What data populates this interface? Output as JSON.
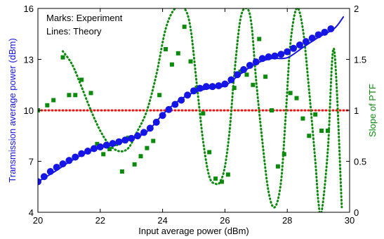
{
  "chart_data": {
    "type": "line",
    "xlabel": "Input average power (dBm)",
    "ylabel_left": "Transmission average power (dBm)",
    "ylabel_right": "Slope of PTF",
    "xlim": [
      20,
      30
    ],
    "ylim_left": [
      4,
      16
    ],
    "ylim_right": [
      0,
      2
    ],
    "x_ticks": [
      "20",
      "22",
      "24",
      "26",
      "28",
      "30"
    ],
    "y_ticks_left": [
      "4",
      "7",
      "10",
      "13",
      "16"
    ],
    "y_ticks_right": [
      "0",
      "0.5",
      "1",
      "1.5",
      "2"
    ],
    "annotations": [
      "Marks: Experiment",
      "Lines: Theory"
    ],
    "colors": {
      "blue": "#1515e6",
      "green": "#0c8a0c",
      "red": "#ee1111"
    },
    "grid": false,
    "series": [
      {
        "axis": "left",
        "style": "markers",
        "color": "#1515e6",
        "x": [
          20.0,
          20.2,
          20.4,
          20.6,
          20.8,
          21.0,
          21.2,
          21.4,
          21.6,
          21.8,
          22.0,
          22.2,
          22.4,
          22.6,
          22.8,
          23.0,
          23.2,
          23.4,
          23.6,
          23.8,
          24.0,
          24.2,
          24.4,
          24.6,
          24.8,
          25.0,
          25.2,
          25.4,
          25.6,
          25.8,
          26.0,
          26.2,
          26.4,
          26.6,
          26.8,
          27.0,
          27.2,
          27.4,
          27.6,
          27.8,
          28.0,
          28.2,
          28.4,
          28.6,
          28.8,
          29.0,
          29.2,
          29.4
        ],
        "y": [
          5.8,
          6.1,
          6.4,
          6.65,
          6.85,
          7.05,
          7.25,
          7.45,
          7.6,
          7.75,
          7.85,
          7.95,
          8.05,
          8.15,
          8.25,
          8.35,
          8.5,
          8.7,
          8.95,
          9.3,
          9.7,
          10.05,
          10.35,
          10.6,
          10.9,
          11.15,
          11.3,
          11.4,
          11.4,
          11.45,
          11.55,
          11.8,
          12.1,
          12.4,
          12.65,
          12.85,
          13.05,
          13.15,
          13.2,
          13.3,
          13.45,
          13.65,
          13.85,
          14.05,
          14.25,
          14.45,
          14.6,
          14.8
        ]
      },
      {
        "axis": "left",
        "style": "solid",
        "color": "#1515e6",
        "x": [
          20.0,
          20.5,
          21.0,
          21.5,
          22.0,
          22.5,
          23.0,
          23.5,
          24.0,
          24.5,
          25.0,
          25.5,
          26.0,
          26.5,
          27.0,
          27.5,
          28.0,
          28.5,
          29.0,
          29.5,
          29.8
        ],
        "y": [
          5.8,
          6.35,
          6.95,
          7.45,
          7.8,
          8.05,
          8.3,
          8.75,
          9.75,
          10.55,
          11.05,
          11.3,
          11.45,
          12.15,
          12.75,
          13.05,
          13.1,
          13.7,
          14.3,
          14.8,
          15.5
        ]
      },
      {
        "axis": "right",
        "style": "squares",
        "color": "#0c8a0c",
        "x": [
          20.0,
          20.3,
          20.5,
          20.8,
          21.0,
          21.2,
          21.4,
          21.7,
          21.9,
          22.1,
          22.3,
          22.5,
          22.7,
          22.9,
          23.1,
          23.3,
          23.5,
          23.7,
          23.9,
          24.1,
          24.3,
          24.5,
          24.7,
          24.9,
          25.1,
          25.3,
          25.5,
          25.7,
          25.9,
          26.1,
          26.3,
          26.5,
          26.7,
          26.9,
          27.1,
          27.3,
          27.5,
          27.7,
          27.9,
          28.1,
          28.3,
          28.5,
          28.7,
          28.9,
          29.1,
          29.3
        ],
        "y": [
          1.0,
          1.05,
          1.1,
          1.52,
          1.15,
          1.15,
          1.3,
          1.17,
          0.67,
          0.57,
          0.62,
          0.67,
          0.4,
          0.73,
          0.47,
          0.55,
          0.63,
          0.7,
          1.15,
          1.6,
          1.45,
          1.56,
          1.82,
          1.48,
          1.22,
          0.97,
          0.59,
          0.33,
          0.3,
          0.37,
          1.22,
          1.38,
          1.35,
          1.25,
          1.7,
          1.33,
          1.0,
          0.45,
          0.57,
          1.17,
          1.12,
          0.92,
          0.75,
          0.96,
          0.8,
          0.8
        ]
      },
      {
        "axis": "right",
        "style": "dotted",
        "color": "#0c8a0c",
        "x": [
          20.8,
          21.1,
          21.4,
          21.7,
          22.0,
          22.3,
          22.6,
          22.9,
          23.2,
          23.5,
          23.8,
          24.1,
          24.4,
          24.7,
          24.9,
          25.1,
          25.3,
          25.5,
          25.7,
          25.85,
          26.0,
          26.15,
          26.3,
          26.5,
          26.7,
          26.85,
          27.0,
          27.2,
          27.4,
          27.6,
          27.8,
          27.95,
          28.1,
          28.3,
          28.5,
          28.7,
          28.9,
          29.0,
          29.1,
          29.3,
          29.5,
          29.75
        ],
        "y": [
          1.58,
          1.45,
          1.23,
          1.0,
          0.8,
          0.66,
          0.6,
          0.63,
          0.8,
          1.0,
          1.35,
          1.8,
          2.0,
          2.0,
          1.8,
          1.25,
          0.7,
          0.35,
          0.28,
          0.3,
          0.45,
          0.8,
          1.35,
          1.9,
          2.0,
          1.85,
          1.3,
          0.7,
          0.2,
          0.05,
          0.3,
          0.95,
          1.65,
          2.0,
          1.8,
          1.2,
          0.5,
          0.1,
          0.0,
          0.6,
          1.6,
          0.05
        ]
      },
      {
        "axis": "right",
        "style": "dotted",
        "color": "#ee1111",
        "x": [
          20,
          30
        ],
        "y": [
          1,
          1
        ]
      }
    ]
  }
}
